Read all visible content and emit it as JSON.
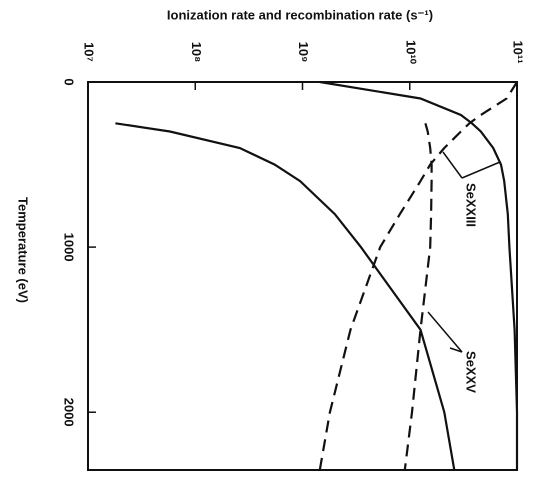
{
  "chart_data": {
    "type": "line",
    "title": "Ionization rate and recombination rate (s⁻¹)",
    "y_label": "Temperature (eV)",
    "x": [
      0,
      100,
      200,
      250,
      300,
      400,
      500,
      600,
      800,
      1000,
      1500,
      2000,
      2350
    ],
    "series": [
      {
        "color": "#111111",
        "style": "solid",
        "values": [
          1450000000,
          12600000000,
          30000000000,
          38000000000,
          46000000000,
          60000000000,
          71000000000,
          76000000000,
          82000000000,
          85000000000,
          95000000000,
          100000000000,
          100000000000
        ]
      },
      {
        "color": "#111111",
        "style": "solid",
        "values": [
          null,
          null,
          null,
          18000000,
          58000000,
          260000000,
          550000000,
          950000000,
          2000000000,
          3500000000,
          12600000000,
          21000000000,
          26000000000
        ]
      },
      {
        "color": "#111111",
        "style": "dashed",
        "values": [
          100000000000,
          80000000000,
          46000000000,
          36000000000,
          30000000000,
          21000000000,
          15500000000,
          12600000000,
          8100000000,
          5300000000,
          2800000000,
          1800000000,
          1450000000
        ]
      },
      {
        "color": "#111111",
        "style": "dashed",
        "values": [
          null,
          null,
          null,
          14000000000,
          14700000000,
          15500000000,
          16000000000,
          16000000000,
          15800000000,
          15500000000,
          12600000000,
          10500000000,
          9000000000
        ]
      }
    ],
    "annotations": [
      "SeXXIII",
      "SeXXV"
    ],
    "ratelim": [
      10000000,
      100000000000
    ],
    "rate_scale": "log",
    "rateticks": [
      {
        "value": 10000000,
        "label": "10⁷"
      },
      {
        "value": 100000000,
        "label": "10⁸"
      },
      {
        "value": 1000000000,
        "label": "10⁹"
      },
      {
        "value": 10000000000,
        "label": "10¹⁰"
      },
      {
        "value": 100000000000,
        "label": "10¹¹"
      }
    ],
    "ylim": [
      0,
      2350
    ],
    "yticks": [
      0,
      1000,
      2000
    ]
  }
}
